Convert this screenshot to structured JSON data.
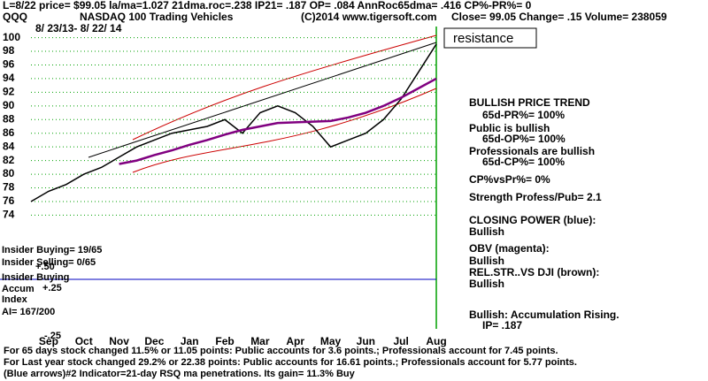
{
  "chart_data": {
    "type": "line",
    "header": "L=8/22  price= $99.05  la/ma=1.027 21dma.roc=.238 IP21= .187 OP= .084 AnnRoc65dma= .416 CP%-PR%=  0",
    "symbol": "QQQ",
    "title": "NASDAQ 100 Trading Vehicles",
    "copyright": "(C)2014 www.tigersoft.com",
    "quote": "Close= 99.05  Change= .15 Volume= 238059",
    "date_range": "8/ 23/13- 8/ 22/ 14",
    "annotation": "resistance",
    "categories": [
      null,
      "Sep",
      null,
      "Oct",
      null,
      "Nov",
      null,
      "Dec",
      null,
      "Jan",
      null,
      "Feb",
      null,
      "Mar",
      null,
      "Apr",
      null,
      "May",
      null,
      "Jun",
      null,
      "Jul",
      null,
      "Aug"
    ],
    "series": [
      {
        "color": "#000000",
        "values": [
          76,
          77.5,
          78.5,
          80,
          81,
          82.5,
          84,
          85,
          86,
          86.5,
          87,
          88,
          86,
          89,
          90,
          89,
          87,
          84,
          85,
          86,
          88,
          91,
          95,
          99.05
        ]
      },
      {
        "color": "#800080",
        "values": [
          null,
          null,
          null,
          null,
          null,
          81.5,
          82,
          82.8,
          83.5,
          84.3,
          85,
          85.8,
          86.5,
          87,
          87.5,
          87.6,
          87.7,
          87.8,
          88.3,
          89,
          90,
          91.2,
          92.6,
          94
        ]
      }
    ],
    "ylim": [
      72.5,
      101.5
    ],
    "yticks": [
      74,
      76,
      78,
      80,
      82,
      84,
      86,
      88,
      90,
      92,
      94,
      96,
      98,
      100
    ],
    "grid": true,
    "right_panel": [
      "BULLISH PRICE TREND",
      "65d-PR%= 100%",
      "Public is bullish",
      "65d-OP%= 100%",
      "Professionals are bullish",
      "65d-CP%= 100%",
      "CP%vsPr%=  0%",
      "Strength Profess/Pub= 2.1",
      "CLOSING POWER (blue):",
      "Bullish",
      "OBV (magenta):",
      "Bullish",
      "REL.STR..VS DJI (brown):",
      "Bullish",
      "Bullish: Accumulation Rising.",
      "IP=  .187"
    ],
    "left_panel": [
      "Insider Buying= 19/65",
      "Insider Selling= 0/65",
      "+.50",
      "Insider Buying",
      "Accum",
      "+.25",
      "Index",
      "AI= 167/200",
      "-.25"
    ],
    "footer": [
      "For 65 days stock changed  11.5% or  11.05 points:  Public accounts for  3.6 points.;  Professionals account for  7.45 points.",
      "For Last year stock changed  29.2% or  22.38 points:  Public accounts for  16.61 points.;  Professionals account for  5.77 points.",
      "(Blue arrows)#2 Indicator=21-day RSQ ma penetrations. Its gain= 11.3% Buy"
    ]
  }
}
